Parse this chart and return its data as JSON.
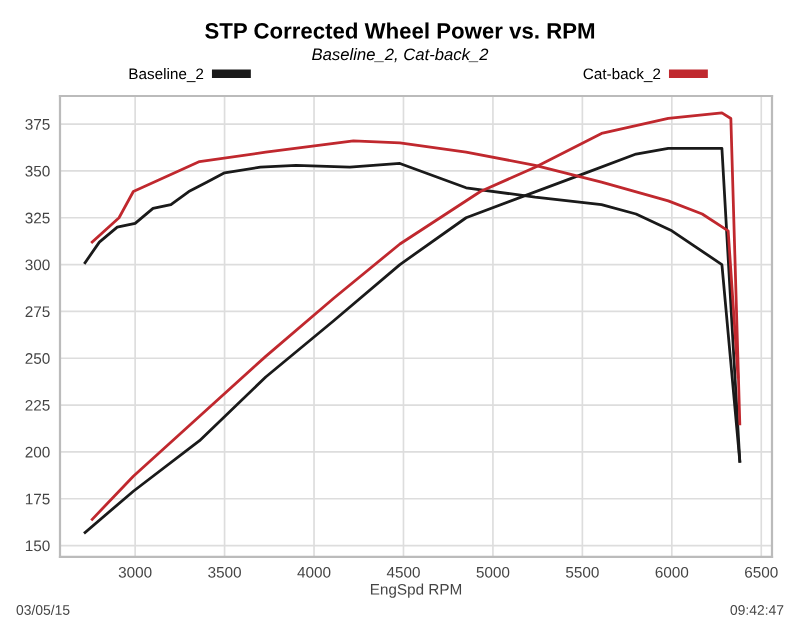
{
  "chart_data": {
    "type": "line",
    "title": "STP Corrected Wheel Power vs. RPM",
    "subtitle": "Baseline_2, Cat-back_2",
    "xlabel": "EngSpd RPM",
    "annotations": [
      "03/05/15",
      "09:42:47"
    ],
    "series": [
      {
        "name": "Baseline_2",
        "color": "#1a1a1a",
        "x": [
          2720,
          2800,
          2900,
          3000,
          3100,
          3200,
          3300,
          3400,
          3500,
          3700,
          3900,
          4200,
          4480,
          4850,
          5236,
          5607,
          5800,
          6000,
          6280,
          6380
        ],
        "values": [
          301,
          312,
          320,
          322,
          330,
          332,
          339,
          344,
          349,
          352,
          353,
          352,
          354,
          341,
          336,
          332,
          327,
          318,
          300,
          195
        ]
      },
      {
        "color": "#1a1a1a",
        "x": [
          2720,
          2990,
          3360,
          3730,
          4110,
          4480,
          4850,
          5494,
          5800,
          5980,
          6280,
          6380
        ],
        "values": [
          157,
          179,
          206,
          240,
          270,
          300,
          325,
          348,
          359,
          362,
          362,
          195
        ]
      },
      {
        "name": "Cat-back_2",
        "color": "#c0282e",
        "x": [
          2760,
          2910,
          2990,
          3360,
          3730,
          4220,
          4480,
          4850,
          5236,
          5607,
          5980,
          6170,
          6315,
          6370
        ],
        "values": [
          312,
          325,
          339,
          355,
          360,
          366,
          365,
          360,
          353,
          344,
          334,
          327,
          318,
          240
        ]
      },
      {
        "color": "#c0282e",
        "x": [
          2760,
          2990,
          3360,
          3730,
          4110,
          4480,
          4930,
          5236,
          5607,
          5980,
          6280,
          6330,
          6380
        ],
        "values": [
          164,
          187,
          219,
          251,
          282,
          311,
          339,
          352,
          370,
          378,
          381,
          378,
          215
        ]
      }
    ],
    "xlim": [
      2580,
      6560
    ],
    "ylim": [
      144,
      390
    ],
    "xticks": [
      3000,
      3500,
      4000,
      4500,
      5000,
      5500,
      6000,
      6500
    ],
    "yticks": [
      150,
      175,
      200,
      225,
      250,
      275,
      300,
      325,
      350,
      375
    ],
    "grid": true,
    "legend": "top"
  }
}
